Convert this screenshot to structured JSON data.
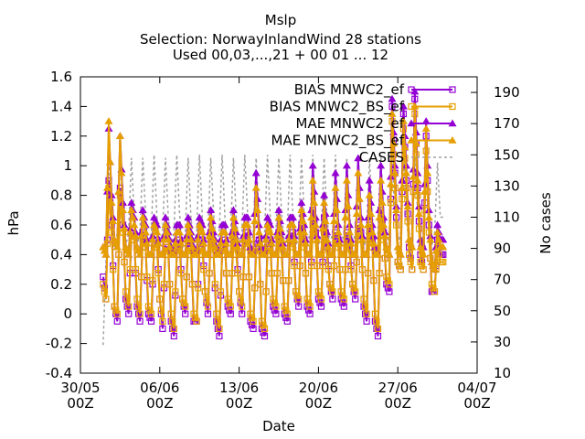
{
  "chart_data": {
    "type": "line",
    "title": "Mslp",
    "subtitle_lines": [
      "Selection: NorwayInlandWind     28 stations",
      "Used 00,03,...,21 + 00 01 ... 12"
    ],
    "xlabel": "Date",
    "ylabel": "hPa",
    "y2label": "No cases",
    "xlim": [
      "2023-05-30T00:00",
      "2023-07-04T00:00"
    ],
    "ylim": [
      -0.4,
      1.6
    ],
    "y2lim": [
      10,
      200
    ],
    "x_ticks": [
      {
        "line1": "30/05",
        "line2": "00Z"
      },
      {
        "line1": "06/06",
        "line2": "00Z"
      },
      {
        "line1": "13/06",
        "line2": "00Z"
      },
      {
        "line1": "20/06",
        "line2": "00Z"
      },
      {
        "line1": "27/06",
        "line2": "00Z"
      },
      {
        "line1": "04/07",
        "line2": "00Z"
      }
    ],
    "y_ticks": [
      "-0.4",
      "-0.2",
      "0",
      "0.2",
      "0.4",
      "0.6",
      "0.8",
      "1",
      "1.2",
      "1.4",
      "1.6"
    ],
    "y2_ticks": [
      "10",
      "30",
      "50",
      "70",
      "90",
      "110",
      "130",
      "150",
      "170",
      "190"
    ],
    "grid": false,
    "legend_position": "top-right",
    "data_period": [
      "2023-06-01T00:00",
      "2023-07-01T00:00"
    ],
    "series": [
      {
        "name": "BIAS MNWC2_ef",
        "axis": "left",
        "color": "#9400d3",
        "marker": "square-open",
        "daily_cycle": [
          [
            0.25,
            0.1,
            0.9,
            0.6
          ],
          [
            0.05,
            -0.05,
            0.85,
            0.6
          ],
          [
            0.1,
            0.0,
            0.55,
            0.5
          ],
          [
            0.05,
            -0.05,
            0.55,
            0.45
          ],
          [
            0.0,
            -0.05,
            0.45,
            0.5
          ],
          [
            0.1,
            -0.1,
            0.45,
            0.45
          ],
          [
            -0.05,
            -0.15,
            0.4,
            0.5
          ],
          [
            0.1,
            0.0,
            0.5,
            0.45
          ],
          [
            -0.05,
            -0.05,
            0.45,
            0.5
          ],
          [
            0.15,
            0.0,
            0.55,
            0.4
          ],
          [
            -0.05,
            -0.15,
            0.4,
            0.5
          ],
          [
            0.05,
            0.0,
            0.55,
            0.45
          ],
          [
            0.15,
            0.0,
            0.5,
            0.55
          ],
          [
            -0.05,
            -0.1,
            0.45,
            0.5
          ],
          [
            -0.1,
            -0.15,
            0.45,
            0.5
          ],
          [
            0.05,
            0.0,
            0.55,
            0.45
          ],
          [
            0.0,
            -0.05,
            0.5,
            0.55
          ],
          [
            0.15,
            0.05,
            0.6,
            0.5
          ],
          [
            0.05,
            0.0,
            0.7,
            0.55
          ],
          [
            0.1,
            0.05,
            0.65,
            0.45
          ],
          [
            0.2,
            0.1,
            0.55,
            0.5
          ],
          [
            0.1,
            0.05,
            0.55,
            0.45
          ],
          [
            0.2,
            0.1,
            0.6,
            0.55
          ],
          [
            0.05,
            -0.05,
            0.6,
            0.5
          ],
          [
            -0.05,
            -0.15,
            0.7,
            0.55
          ],
          [
            0.2,
            0.15,
            1.4,
            0.95
          ],
          [
            0.35,
            0.3,
            1.35,
            0.9
          ],
          [
            0.45,
            0.3,
            1.45,
            0.85
          ],
          [
            0.4,
            0.3,
            1.2,
            0.6
          ],
          [
            0.15,
            0.15,
            0.5,
            0.4
          ]
        ]
      },
      {
        "name": "BIAS MNWC2_BS_ef",
        "axis": "left",
        "color": "#e69f00",
        "marker": "square-open",
        "daily_cycle": [
          [
            0.2,
            0.1,
            0.85,
            0.55
          ],
          [
            0.05,
            0.0,
            0.8,
            0.55
          ],
          [
            0.15,
            0.05,
            0.55,
            0.5
          ],
          [
            0.1,
            0.0,
            0.5,
            0.45
          ],
          [
            0.05,
            0.0,
            0.45,
            0.45
          ],
          [
            0.1,
            -0.05,
            0.45,
            0.4
          ],
          [
            0.0,
            -0.1,
            0.4,
            0.45
          ],
          [
            0.1,
            0.05,
            0.45,
            0.4
          ],
          [
            0.0,
            -0.05,
            0.4,
            0.45
          ],
          [
            0.15,
            0.05,
            0.5,
            0.4
          ],
          [
            0.0,
            -0.1,
            0.4,
            0.45
          ],
          [
            0.1,
            0.05,
            0.5,
            0.4
          ],
          [
            0.15,
            0.05,
            0.45,
            0.5
          ],
          [
            0.0,
            -0.05,
            0.4,
            0.45
          ],
          [
            -0.05,
            -0.1,
            0.4,
            0.45
          ],
          [
            0.1,
            0.05,
            0.5,
            0.4
          ],
          [
            0.05,
            0.0,
            0.45,
            0.5
          ],
          [
            0.15,
            0.1,
            0.55,
            0.45
          ],
          [
            0.1,
            0.05,
            0.6,
            0.5
          ],
          [
            0.15,
            0.1,
            0.55,
            0.4
          ],
          [
            0.2,
            0.15,
            0.5,
            0.45
          ],
          [
            0.15,
            0.1,
            0.5,
            0.4
          ],
          [
            0.2,
            0.15,
            0.55,
            0.5
          ],
          [
            0.1,
            0.0,
            0.55,
            0.45
          ],
          [
            0.0,
            -0.1,
            0.65,
            0.5
          ],
          [
            0.25,
            0.2,
            1.3,
            0.85
          ],
          [
            0.35,
            0.3,
            1.25,
            0.85
          ],
          [
            0.4,
            0.3,
            1.35,
            0.8
          ],
          [
            0.35,
            0.3,
            1.1,
            0.55
          ],
          [
            0.2,
            0.15,
            0.45,
            0.35
          ]
        ]
      },
      {
        "name": "MAE MNWC2_ef",
        "axis": "left",
        "color": "#9400d3",
        "marker": "triangle-filled",
        "daily_cycle": [
          [
            0.45,
            0.4,
            1.25,
            0.8
          ],
          [
            0.5,
            0.45,
            1.2,
            0.75
          ],
          [
            0.45,
            0.4,
            0.75,
            0.65
          ],
          [
            0.45,
            0.4,
            0.7,
            0.6
          ],
          [
            0.4,
            0.4,
            0.65,
            0.6
          ],
          [
            0.4,
            0.4,
            0.65,
            0.55
          ],
          [
            0.45,
            0.4,
            0.6,
            0.6
          ],
          [
            0.4,
            0.4,
            0.65,
            0.55
          ],
          [
            0.45,
            0.4,
            0.65,
            0.6
          ],
          [
            0.4,
            0.4,
            0.7,
            0.55
          ],
          [
            0.45,
            0.4,
            0.6,
            0.6
          ],
          [
            0.4,
            0.4,
            0.7,
            0.55
          ],
          [
            0.4,
            0.4,
            0.65,
            0.65
          ],
          [
            0.45,
            0.4,
            0.95,
            0.6
          ],
          [
            0.45,
            0.4,
            0.65,
            0.6
          ],
          [
            0.4,
            0.4,
            0.7,
            0.55
          ],
          [
            0.4,
            0.4,
            0.65,
            0.65
          ],
          [
            0.4,
            0.4,
            0.75,
            0.6
          ],
          [
            0.4,
            0.4,
            1.0,
            0.65
          ],
          [
            0.4,
            0.4,
            0.8,
            0.55
          ],
          [
            0.4,
            0.4,
            0.95,
            0.6
          ],
          [
            0.4,
            0.4,
            1.0,
            0.6
          ],
          [
            0.4,
            0.4,
            1.05,
            0.65
          ],
          [
            0.4,
            0.4,
            0.9,
            0.6
          ],
          [
            0.45,
            0.4,
            1.0,
            0.65
          ],
          [
            0.45,
            0.4,
            1.45,
            1.0
          ],
          [
            0.45,
            0.4,
            1.4,
            1.0
          ],
          [
            0.5,
            0.45,
            1.5,
            0.95
          ],
          [
            0.5,
            0.45,
            1.3,
            0.7
          ],
          [
            0.35,
            0.3,
            0.6,
            0.5
          ]
        ]
      },
      {
        "name": "MAE MNWC2_BS_ef",
        "axis": "left",
        "color": "#e69f00",
        "marker": "triangle-filled",
        "daily_cycle": [
          [
            0.45,
            0.4,
            1.3,
            0.75
          ],
          [
            0.5,
            0.45,
            1.2,
            0.7
          ],
          [
            0.45,
            0.4,
            0.7,
            0.6
          ],
          [
            0.45,
            0.4,
            0.65,
            0.55
          ],
          [
            0.4,
            0.4,
            0.6,
            0.55
          ],
          [
            0.4,
            0.4,
            0.6,
            0.5
          ],
          [
            0.4,
            0.4,
            0.55,
            0.55
          ],
          [
            0.4,
            0.4,
            0.6,
            0.5
          ],
          [
            0.4,
            0.4,
            0.6,
            0.55
          ],
          [
            0.4,
            0.4,
            0.65,
            0.5
          ],
          [
            0.4,
            0.4,
            0.55,
            0.55
          ],
          [
            0.4,
            0.4,
            0.65,
            0.5
          ],
          [
            0.4,
            0.4,
            0.6,
            0.6
          ],
          [
            0.4,
            0.4,
            0.85,
            0.55
          ],
          [
            0.4,
            0.4,
            0.6,
            0.55
          ],
          [
            0.4,
            0.4,
            0.65,
            0.5
          ],
          [
            0.4,
            0.4,
            0.6,
            0.6
          ],
          [
            0.4,
            0.4,
            0.7,
            0.55
          ],
          [
            0.4,
            0.4,
            0.9,
            0.6
          ],
          [
            0.4,
            0.4,
            0.75,
            0.5
          ],
          [
            0.4,
            0.4,
            0.85,
            0.55
          ],
          [
            0.4,
            0.4,
            0.9,
            0.55
          ],
          [
            0.4,
            0.4,
            0.95,
            0.6
          ],
          [
            0.4,
            0.4,
            0.8,
            0.55
          ],
          [
            0.4,
            0.4,
            0.9,
            0.6
          ],
          [
            0.45,
            0.4,
            1.35,
            0.95
          ],
          [
            0.45,
            0.4,
            1.3,
            0.95
          ],
          [
            0.5,
            0.45,
            1.4,
            0.9
          ],
          [
            0.45,
            0.4,
            1.25,
            0.65
          ],
          [
            0.35,
            0.3,
            0.55,
            0.45
          ]
        ]
      },
      {
        "name": "CASES",
        "axis": "right",
        "color": "#a0a0a0",
        "marker": "none",
        "dashed": true,
        "daily_cycle": [
          [
            28,
            80,
            150,
            110
          ],
          [
            90,
            100,
            150,
            110
          ],
          [
            92,
            100,
            148,
            110
          ],
          [
            92,
            100,
            148,
            112
          ],
          [
            92,
            100,
            150,
            110
          ],
          [
            92,
            100,
            148,
            110
          ],
          [
            92,
            100,
            150,
            112
          ],
          [
            90,
            100,
            148,
            110
          ],
          [
            92,
            100,
            150,
            110
          ],
          [
            92,
            100,
            148,
            112
          ],
          [
            92,
            100,
            150,
            110
          ],
          [
            92,
            100,
            148,
            110
          ],
          [
            92,
            100,
            150,
            112
          ],
          [
            90,
            100,
            148,
            110
          ],
          [
            92,
            100,
            150,
            110
          ],
          [
            92,
            100,
            148,
            112
          ],
          [
            92,
            100,
            150,
            110
          ],
          [
            90,
            100,
            148,
            110
          ],
          [
            92,
            100,
            150,
            112
          ],
          [
            92,
            100,
            148,
            110
          ],
          [
            92,
            100,
            150,
            110
          ],
          [
            92,
            100,
            148,
            112
          ],
          [
            92,
            100,
            150,
            110
          ],
          [
            90,
            100,
            148,
            110
          ],
          [
            92,
            100,
            150,
            112
          ],
          [
            92,
            100,
            148,
            110
          ],
          [
            92,
            100,
            150,
            110
          ],
          [
            92,
            100,
            148,
            112
          ],
          [
            92,
            100,
            148,
            110
          ],
          [
            92,
            100,
            145,
            110
          ]
        ]
      }
    ]
  }
}
